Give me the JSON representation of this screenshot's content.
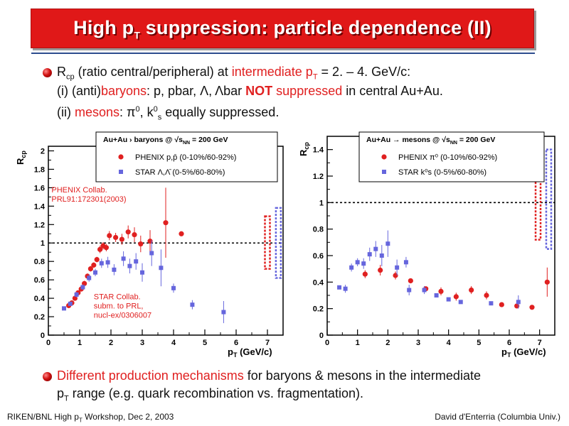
{
  "slide": {
    "title_pre": "High p",
    "title_sub": "T",
    "title_post": " suppression: particle dependence (II)",
    "colors": {
      "banner": "#e01818",
      "accent_red": "#e02020",
      "rule": "#2d4d8f"
    }
  },
  "bullet1": {
    "line1_r": "R",
    "line1_r_sub": "cp",
    "line1_a": " (ratio central/peripheral) at ",
    "line1_b": "intermediate p",
    "line1_b_sub": "T",
    "line1_c": " = 2. – 4. GeV/c:",
    "line2_a": "(i) (anti)",
    "line2_b": "baryons",
    "line2_c": ": p, pbar, Λ, Λbar ",
    "line2_d": "NOT",
    "line2_e": " suppressed",
    "line2_f": " in central Au+Au.",
    "line3_a": "(ii) ",
    "line3_b": "mesons",
    "line3_c": ": π",
    "line3_c_sup": "0",
    "line3_d": ", k",
    "line3_d_sup": "0",
    "line3_d_sub": "s",
    "line3_e": " equally suppressed."
  },
  "bullet2": {
    "line1_a": "Different production mechanisms",
    "line1_b": " for baryons & mesons in the intermediate",
    "line2_a": "p",
    "line2_sub": "T",
    "line2_b": " range (e.g. quark recombination vs. fragmentation)."
  },
  "footer": {
    "left_a": "RIKEN/BNL High p",
    "left_sub": "T",
    "left_b": " Workshop, Dec 2, 2003",
    "right": "David d'Enterria (Columbia Univ.)"
  },
  "chart_data": [
    {
      "type": "scatter",
      "ylabel": "R",
      "ylabel_sub": "cp",
      "xlabel": "p",
      "xlabel_sub": "T",
      "xlabel_unit": " (GeV/c)",
      "xlim": [
        0,
        7.5
      ],
      "ylim": [
        0,
        2.05
      ],
      "xticks": [
        0,
        1,
        2,
        3,
        4,
        5,
        6,
        7
      ],
      "yticks": [
        0,
        0.2,
        0.4,
        0.6,
        0.8,
        1,
        1.2,
        1.4,
        1.6,
        1.8,
        2
      ],
      "ytick_labels": [
        "0",
        "0.2",
        "0.4",
        "0.6",
        "0.8",
        "1",
        "1.2",
        "1.4",
        "1.6",
        "1.8",
        "2"
      ],
      "reference_line": 1,
      "legend": {
        "header": "Au+Au    › baryons @ √s",
        "header_sub": "NN",
        "header_tail": " = 200 GeV",
        "entries": [
          "PHENIX p,p̄ (0-10%/60-92%)",
          "STAR Λ,Λ̄ (0-5%/60-80%)"
        ],
        "placement": "top"
      },
      "annotations": [
        {
          "lines": [
            "PHENIX Collab.",
            "PRL91:172301(2003)"
          ],
          "color": "#e02020",
          "at": [
            0.1,
            1.55
          ]
        },
        {
          "lines": [
            "STAR Collab.",
            "subm. to PRL,",
            "nucl-ex/0306007"
          ],
          "color": "#e02020",
          "at": [
            1.45,
            0.39
          ]
        }
      ],
      "series": [
        {
          "name": "PHENIX p,p̄ (0-10%/60-92%)",
          "color": "#e02020",
          "marker": "circle",
          "points": [
            [
              0.65,
              0.32,
              0.02
            ],
            [
              0.75,
              0.35,
              0.02
            ],
            [
              0.85,
              0.4,
              0.02
            ],
            [
              0.95,
              0.46,
              0.02
            ],
            [
              1.05,
              0.5,
              0.02
            ],
            [
              1.15,
              0.56,
              0.03
            ],
            [
              1.25,
              0.64,
              0.03
            ],
            [
              1.35,
              0.72,
              0.03
            ],
            [
              1.45,
              0.76,
              0.03
            ],
            [
              1.55,
              0.82,
              0.03
            ],
            [
              1.65,
              0.93,
              0.04
            ],
            [
              1.75,
              0.97,
              0.04
            ],
            [
              1.85,
              0.95,
              0.04
            ],
            [
              1.95,
              1.08,
              0.05
            ],
            [
              2.15,
              1.06,
              0.05
            ],
            [
              2.35,
              1.04,
              0.06
            ],
            [
              2.55,
              1.12,
              0.07
            ],
            [
              2.75,
              1.09,
              0.08
            ],
            [
              2.95,
              0.99,
              0.09
            ],
            [
              3.25,
              1.02,
              0.12
            ],
            [
              3.75,
              1.22,
              0.38
            ],
            [
              4.25,
              1.1,
              0.02
            ]
          ]
        },
        {
          "name": "STAR Λ,Λ̄ (0-5%/60-80%)",
          "color": "#6666dd",
          "marker": "square",
          "points": [
            [
              0.5,
              0.29,
              0.02
            ],
            [
              0.7,
              0.34,
              0.02
            ],
            [
              0.9,
              0.44,
              0.03
            ],
            [
              1.1,
              0.52,
              0.03
            ],
            [
              1.3,
              0.62,
              0.04
            ],
            [
              1.5,
              0.68,
              0.04
            ],
            [
              1.7,
              0.78,
              0.05
            ],
            [
              1.9,
              0.79,
              0.06
            ],
            [
              2.1,
              0.71,
              0.06
            ],
            [
              2.4,
              0.83,
              0.08
            ],
            [
              2.6,
              0.75,
              0.08
            ],
            [
              2.8,
              0.8,
              0.09
            ],
            [
              3.0,
              0.68,
              0.1
            ],
            [
              3.3,
              0.89,
              0.14
            ],
            [
              3.6,
              0.73,
              0.2
            ],
            [
              4.0,
              0.51,
              0.05
            ],
            [
              4.6,
              0.33,
              0.05
            ],
            [
              5.6,
              0.25,
              0.12
            ]
          ]
        }
      ],
      "systematic_bands": [
        {
          "x": 7.0,
          "low": 0.72,
          "high": 1.29,
          "color": "#e02020"
        },
        {
          "x": 7.35,
          "low": 0.62,
          "high": 1.38,
          "color": "#6666dd"
        }
      ]
    },
    {
      "type": "scatter",
      "ylabel": "R",
      "ylabel_sub": "cp",
      "xlabel": "p",
      "xlabel_sub": "T",
      "xlabel_unit": " (GeV/c)",
      "xlim": [
        0,
        7.5
      ],
      "ylim": [
        0,
        1.5
      ],
      "xticks": [
        0,
        1,
        2,
        3,
        4,
        5,
        6,
        7
      ],
      "yticks": [
        0,
        0.2,
        0.4,
        0.6,
        0.8,
        1,
        1.2,
        1.4
      ],
      "ytick_labels": [
        "0",
        "0.2",
        "0.4",
        "0.6",
        "0.8",
        "1",
        "1.2",
        "1.4"
      ],
      "reference_line": 1,
      "legend": {
        "header": "Au+Au → mesons @ √s",
        "header_sub": "NN",
        "header_tail": " = 200 GeV",
        "entries": [
          "PHENIX π⁰ (0-10%/60-92%)",
          "STAR k⁰s (0-5%/60-80%)"
        ],
        "placement": "top"
      },
      "series": [
        {
          "name": "PHENIX π⁰ (0-10%/60-92%)",
          "color": "#e02020",
          "marker": "circle",
          "points": [
            [
              1.25,
              0.46,
              0.03
            ],
            [
              1.75,
              0.49,
              0.04
            ],
            [
              2.25,
              0.45,
              0.03
            ],
            [
              2.75,
              0.41,
              0.02
            ],
            [
              3.25,
              0.35,
              0.02
            ],
            [
              3.75,
              0.33,
              0.03
            ],
            [
              4.25,
              0.29,
              0.03
            ],
            [
              4.75,
              0.34,
              0.03
            ],
            [
              5.25,
              0.3,
              0.03
            ],
            [
              5.75,
              0.23,
              0.02
            ],
            [
              6.25,
              0.22,
              0.02
            ],
            [
              6.75,
              0.21,
              0.02
            ],
            [
              7.25,
              0.4,
              0.11
            ]
          ]
        },
        {
          "name": "STAR k⁰s (0-5%/60-80%)",
          "color": "#6666dd",
          "marker": "square",
          "points": [
            [
              0.4,
              0.36,
              0.02
            ],
            [
              0.6,
              0.35,
              0.03
            ],
            [
              0.8,
              0.51,
              0.03
            ],
            [
              1.0,
              0.55,
              0.03
            ],
            [
              1.2,
              0.54,
              0.04
            ],
            [
              1.4,
              0.61,
              0.05
            ],
            [
              1.6,
              0.65,
              0.06
            ],
            [
              1.8,
              0.6,
              0.08
            ],
            [
              2.0,
              0.69,
              0.1
            ],
            [
              2.3,
              0.51,
              0.06
            ],
            [
              2.6,
              0.55,
              0.04
            ],
            [
              2.7,
              0.34,
              0.04
            ],
            [
              3.2,
              0.34,
              0.03
            ],
            [
              3.6,
              0.3,
              0.02
            ],
            [
              4.0,
              0.27,
              0.02
            ],
            [
              4.4,
              0.25,
              0.02
            ],
            [
              5.4,
              0.24,
              0.02
            ],
            [
              6.3,
              0.25,
              0.05
            ]
          ]
        }
      ],
      "systematic_bands": [
        {
          "x": 6.95,
          "low": 0.72,
          "high": 1.27,
          "color": "#e02020"
        },
        {
          "x": 7.3,
          "low": 0.65,
          "high": 1.4,
          "color": "#6666dd"
        }
      ]
    }
  ]
}
